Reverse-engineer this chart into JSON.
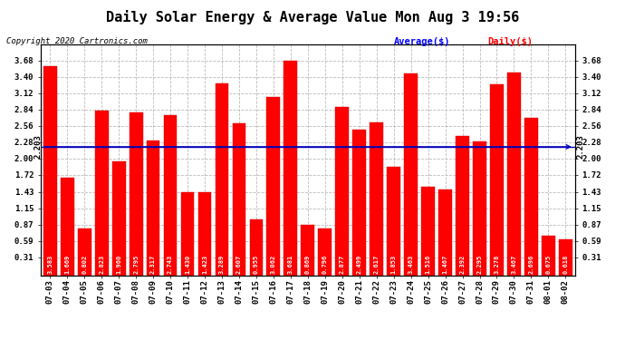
{
  "title": "Daily Solar Energy & Average Value Mon Aug 3 19:56",
  "copyright": "Copyright 2020 Cartronics.com",
  "average_label": "Average($)",
  "daily_label": "Daily($)",
  "average_value": 2.203,
  "categories": [
    "07-03",
    "07-04",
    "07-05",
    "07-06",
    "07-07",
    "07-08",
    "07-09",
    "07-10",
    "07-11",
    "07-12",
    "07-13",
    "07-14",
    "07-15",
    "07-16",
    "07-17",
    "07-18",
    "07-19",
    "07-20",
    "07-21",
    "07-22",
    "07-23",
    "07-24",
    "07-25",
    "07-26",
    "07-27",
    "07-28",
    "07-29",
    "07-30",
    "07-31",
    "08-01",
    "08-02"
  ],
  "values": [
    3.583,
    1.669,
    0.802,
    2.823,
    1.96,
    2.795,
    2.317,
    2.743,
    1.43,
    1.423,
    3.289,
    2.607,
    0.955,
    3.062,
    3.681,
    0.869,
    0.796,
    2.877,
    2.499,
    2.617,
    1.853,
    3.463,
    1.516,
    1.467,
    2.392,
    2.295,
    3.278,
    3.467,
    2.696,
    0.675,
    0.618
  ],
  "bar_color": "#ff0000",
  "bar_edge_color": "#cc0000",
  "average_line_color": "#0000bb",
  "background_color": "#ffffff",
  "grid_color": "#aaaaaa",
  "yticks": [
    0.31,
    0.59,
    0.87,
    1.15,
    1.43,
    1.72,
    2.0,
    2.28,
    2.56,
    2.84,
    3.12,
    3.4,
    3.68
  ],
  "ylim_min": 0.0,
  "ylim_max": 3.96,
  "title_fontsize": 11,
  "tick_fontsize": 6.5,
  "bar_label_fontsize": 5.0,
  "copyright_fontsize": 6.5,
  "legend_fontsize": 7.5
}
